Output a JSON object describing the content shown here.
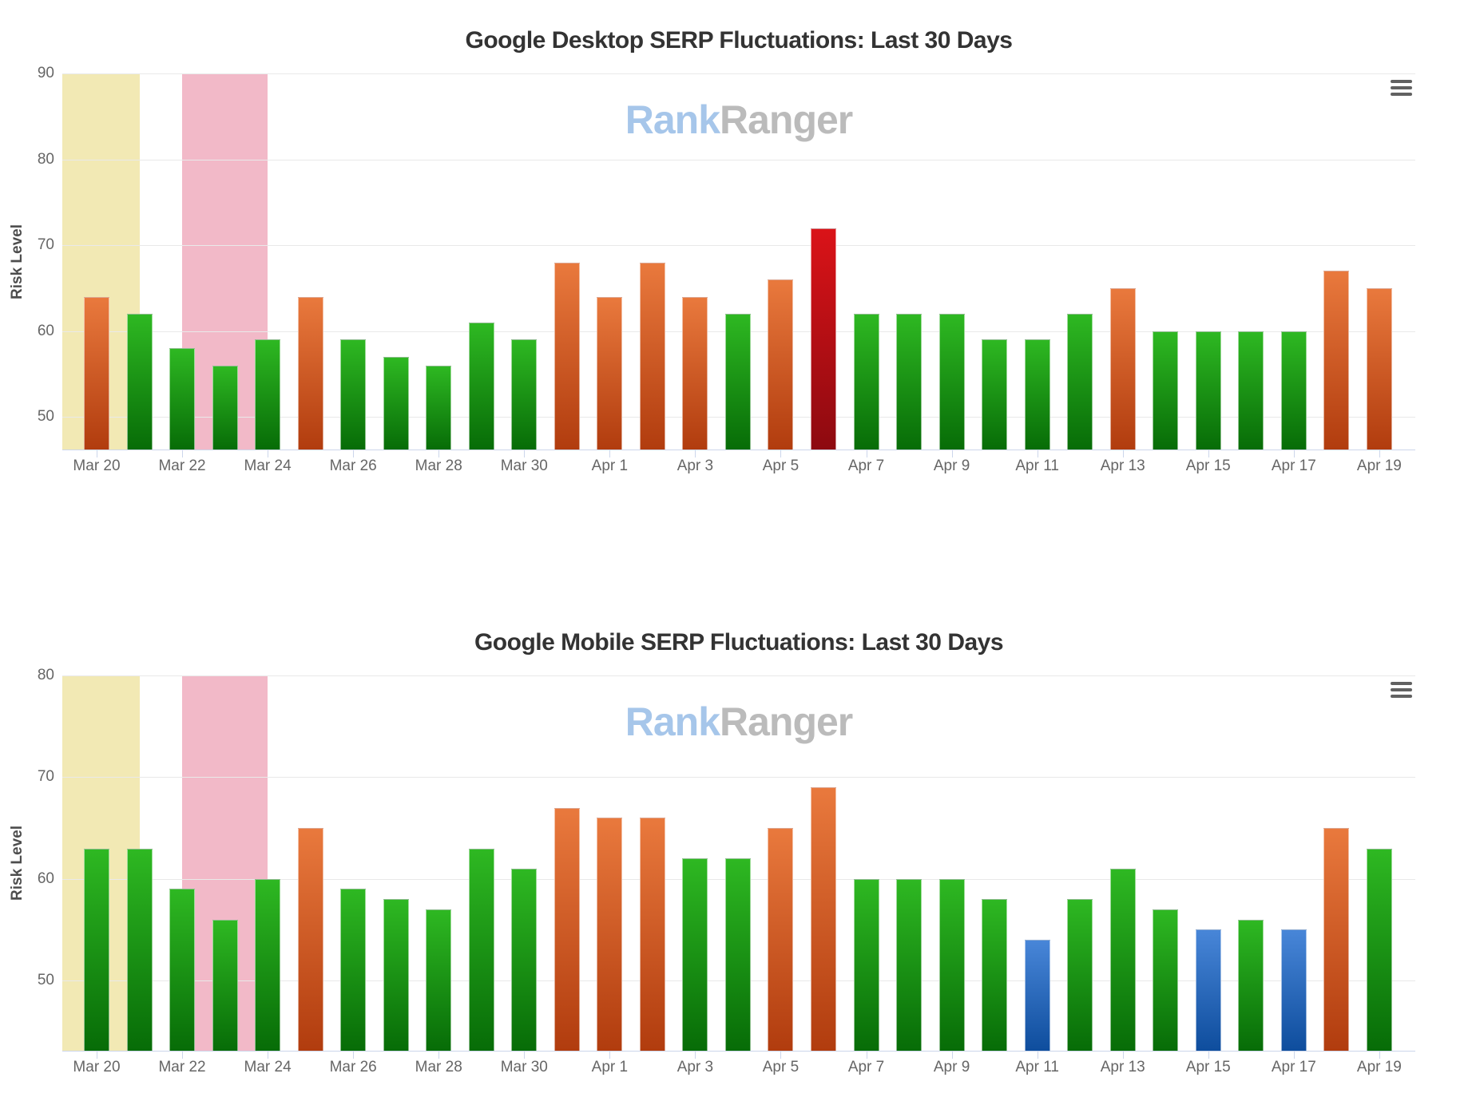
{
  "watermark": {
    "rank": "Rank",
    "ranger": "Ranger"
  },
  "menu_icon": "hamburger-icon",
  "colors": {
    "green_top": "#2eb822",
    "green_bottom": "#076c07",
    "orange_top": "#e9793d",
    "orange_bottom": "#b13c0e",
    "red_top": "#da1318",
    "red_bottom": "#8d0a10",
    "blue_top": "#4886d8",
    "blue_bottom": "#0e4d9d",
    "band_yellow": "#f2e9b4",
    "band_pink": "#f2b9c8",
    "grid": "#e9e9e9",
    "axis_line": "#ccd6eb",
    "tick_text": "#666666",
    "title_text": "#333333",
    "ylabel_text": "#4d4d4d",
    "watermark_blue": "#a6c6ea",
    "watermark_gray": "#bbbbbb",
    "menu_icon": "#616161"
  },
  "chart_data": [
    {
      "type": "bar",
      "title": "Google Desktop SERP Fluctuations: Last 30 Days",
      "xlabel": "",
      "ylabel": "Risk Level",
      "ylim": [
        46.2,
        90
      ],
      "yticks": [
        50,
        60,
        70,
        80,
        90
      ],
      "grid": "horizontal",
      "legend": false,
      "x": [
        "Mar 20",
        "Mar 21",
        "Mar 22",
        "Mar 23",
        "Mar 24",
        "Mar 25",
        "Mar 26",
        "Mar 27",
        "Mar 28",
        "Mar 29",
        "Mar 30",
        "Mar 31",
        "Apr 1",
        "Apr 2",
        "Apr 3",
        "Apr 4",
        "Apr 5",
        "Apr 6",
        "Apr 7",
        "Apr 8",
        "Apr 9",
        "Apr 10",
        "Apr 11",
        "Apr 12",
        "Apr 13",
        "Apr 14",
        "Apr 15",
        "Apr 16",
        "Apr 17",
        "Apr 18",
        "Apr 19"
      ],
      "x_ticks_shown": [
        "Mar 20",
        "Mar 22",
        "Mar 24",
        "Mar 26",
        "Mar 28",
        "Mar 30",
        "Apr 1",
        "Apr 3",
        "Apr 5",
        "Apr 7",
        "Apr 9",
        "Apr 11",
        "Apr 13",
        "Apr 15",
        "Apr 17",
        "Apr 19"
      ],
      "values": [
        64,
        62,
        58,
        56,
        59,
        64,
        59,
        57,
        56,
        61,
        59,
        68,
        64,
        68,
        64,
        62,
        66,
        72,
        62,
        62,
        62,
        59,
        59,
        62,
        65,
        60,
        60,
        60,
        60,
        67,
        65
      ],
      "bar_colors": [
        "orange",
        "green",
        "green",
        "green",
        "green",
        "orange",
        "green",
        "green",
        "green",
        "green",
        "green",
        "orange",
        "orange",
        "orange",
        "orange",
        "green",
        "orange",
        "red",
        "green",
        "green",
        "green",
        "green",
        "green",
        "green",
        "orange",
        "green",
        "green",
        "green",
        "green",
        "orange",
        "orange"
      ],
      "plot_bands": [
        {
          "from": -1,
          "to": 1,
          "color": "yellow"
        },
        {
          "from": 2,
          "to": 4,
          "color": "pink"
        }
      ]
    },
    {
      "type": "bar",
      "title": "Google Mobile SERP Fluctuations: Last 30 Days",
      "xlabel": "",
      "ylabel": "Risk Level",
      "ylim": [
        43.1,
        80
      ],
      "yticks": [
        50,
        60,
        70,
        80
      ],
      "grid": "horizontal",
      "legend": false,
      "x": [
        "Mar 20",
        "Mar 21",
        "Mar 22",
        "Mar 23",
        "Mar 24",
        "Mar 25",
        "Mar 26",
        "Mar 27",
        "Mar 28",
        "Mar 29",
        "Mar 30",
        "Mar 31",
        "Apr 1",
        "Apr 2",
        "Apr 3",
        "Apr 4",
        "Apr 5",
        "Apr 6",
        "Apr 7",
        "Apr 8",
        "Apr 9",
        "Apr 10",
        "Apr 11",
        "Apr 12",
        "Apr 13",
        "Apr 14",
        "Apr 15",
        "Apr 16",
        "Apr 17",
        "Apr 18",
        "Apr 19"
      ],
      "x_ticks_shown": [
        "Mar 20",
        "Mar 22",
        "Mar 24",
        "Mar 26",
        "Mar 28",
        "Mar 30",
        "Apr 1",
        "Apr 3",
        "Apr 5",
        "Apr 7",
        "Apr 9",
        "Apr 11",
        "Apr 13",
        "Apr 15",
        "Apr 17",
        "Apr 19"
      ],
      "values": [
        63,
        63,
        59,
        56,
        60,
        65,
        59,
        58,
        57,
        63,
        61,
        67,
        66,
        66,
        62,
        62,
        65,
        69,
        60,
        60,
        60,
        58,
        54,
        58,
        61,
        57,
        55,
        56,
        55,
        65,
        63
      ],
      "bar_colors": [
        "green",
        "green",
        "green",
        "green",
        "green",
        "orange",
        "green",
        "green",
        "green",
        "green",
        "green",
        "orange",
        "orange",
        "orange",
        "green",
        "green",
        "orange",
        "orange",
        "green",
        "green",
        "green",
        "green",
        "blue",
        "green",
        "green",
        "green",
        "blue",
        "green",
        "blue",
        "orange",
        "green"
      ],
      "plot_bands": [
        {
          "from": -1,
          "to": 1,
          "color": "yellow"
        },
        {
          "from": 2,
          "to": 4,
          "color": "pink"
        }
      ]
    }
  ]
}
